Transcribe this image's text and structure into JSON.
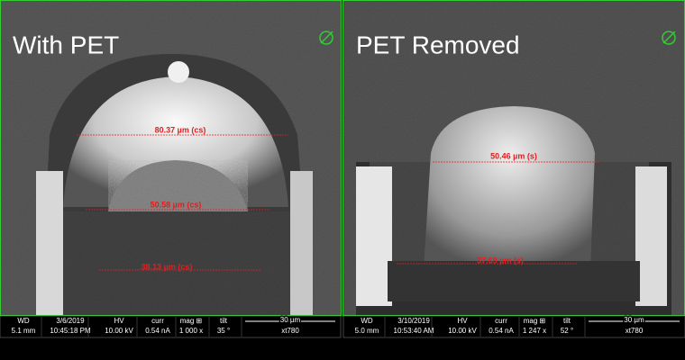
{
  "panels": [
    {
      "title": "With PET",
      "measurements": [
        "80.37 µm (cs)",
        "50.58 µm (cs)",
        "38.13 µm (cs)"
      ],
      "info": {
        "wd_label": "WD",
        "wd": "5.1 mm",
        "date": "3/6/2019",
        "time": "10:45:18 PM",
        "hv_label": "HV",
        "hv": "10.00 kV",
        "curr_label": "curr",
        "curr": "0.54 nA",
        "mag_label": "mag ⊞",
        "mag": "1 000 x",
        "tilt_label": "tilt",
        "tilt": "35 °",
        "scale": "30 µm",
        "tool": "xt780"
      }
    },
    {
      "title": "PET Removed",
      "measurements": [
        "50.46 µm (s)",
        "37.69 µm (s)"
      ],
      "info": {
        "wd_label": "WD",
        "wd": "5.0 mm",
        "date": "3/10/2019",
        "time": "10:53:40 AM",
        "hv_label": "HV",
        "hv": "10.00 kV",
        "curr_label": "curr",
        "curr": "0.54 nA",
        "mag_label": "mag ⊞",
        "mag": "1 247 x",
        "tilt_label": "tilt",
        "tilt": "52 °",
        "scale": "30 µm",
        "tool": "xt780"
      }
    }
  ]
}
